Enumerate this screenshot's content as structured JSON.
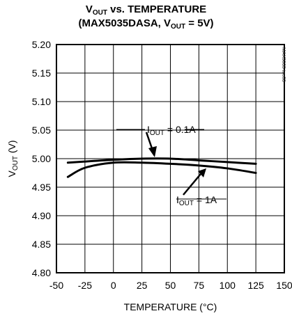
{
  "chart_data": {
    "type": "line",
    "title_line1": {
      "pre": "V",
      "sub": "OUT",
      "post": " vs. TEMPERATURE"
    },
    "title_line2": {
      "pre": "(MAX5035DASA, V",
      "sub": "OUT",
      "post": " = 5V)"
    },
    "xlabel": "TEMPERATURE (°C)",
    "ylabel": {
      "pre": "V",
      "sub": "OUT",
      "post": " (V)"
    },
    "xlim": [
      -50,
      150
    ],
    "ylim": [
      4.8,
      5.2
    ],
    "xticks": [
      "-50",
      "-25",
      "0",
      "25",
      "50",
      "75",
      "100",
      "125",
      "150"
    ],
    "yticks": [
      "5.20",
      "5.15",
      "5.10",
      "5.05",
      "5.00",
      "4.95",
      "4.90",
      "4.85",
      "4.80"
    ],
    "grid": true,
    "watermark": "MAX5035 toc03",
    "series": [
      {
        "name": {
          "pre": "I",
          "sub": "OUT",
          "post": " = 0.1A"
        },
        "x": [
          -40,
          -25,
          0,
          25,
          50,
          75,
          100,
          125
        ],
        "y": [
          4.993,
          4.995,
          4.998,
          5.0,
          5.0,
          4.997,
          4.994,
          4.991
        ]
      },
      {
        "name": {
          "pre": "I",
          "sub": "OUT",
          "post": " = 1A"
        },
        "x": [
          -40,
          -25,
          0,
          25,
          50,
          75,
          100,
          125
        ],
        "y": [
          4.968,
          4.984,
          4.993,
          4.993,
          4.991,
          4.988,
          4.983,
          4.975
        ]
      }
    ]
  }
}
